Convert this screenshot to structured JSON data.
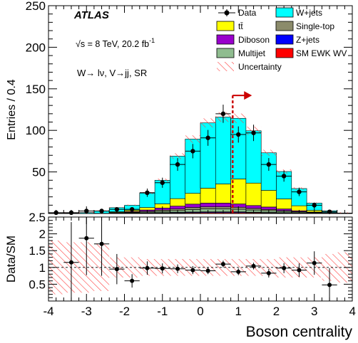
{
  "chart_data": [
    {
      "type": "bar",
      "panel": "main",
      "stacked": true,
      "ylabel": "Entries / 0.4",
      "xlim": [
        -4,
        4
      ],
      "ylim": [
        0,
        250
      ],
      "yticks": [
        "50",
        "100",
        "150",
        "200",
        "250"
      ],
      "bin_edges": [
        -4.0,
        -3.6,
        -3.2,
        -2.8,
        -2.4,
        -2.0,
        -1.6,
        -1.2,
        -0.8,
        -0.4,
        0.0,
        0.4,
        0.8,
        1.2,
        1.6,
        2.0,
        2.4,
        2.8,
        3.2,
        3.6,
        4.0
      ],
      "experiment": "ATLAS",
      "energy_label": "√s = 8 TeV, 20.2 fb",
      "energy_superscript": "-1",
      "region_label": "W→ lν, V→jj, SR",
      "series": [
        {
          "name": "SM EWK WV",
          "color": "#ff0000",
          "values": [
            0,
            0,
            0,
            0,
            0,
            0.3,
            0.4,
            0.6,
            0.8,
            1.0,
            1.2,
            1.2,
            1.2,
            1.0,
            0.8,
            0.6,
            0.4,
            0.2,
            0,
            0
          ]
        },
        {
          "name": "Z+jets",
          "color": "#0000ff",
          "values": [
            0,
            0,
            0,
            0,
            0,
            0.2,
            0.3,
            0.5,
            0.6,
            0.8,
            0.8,
            0.8,
            0.8,
            0.6,
            0.5,
            0.4,
            0.3,
            0.2,
            0,
            0
          ]
        },
        {
          "name": "Multijet",
          "color": "#8fbc8f",
          "values": [
            0,
            0,
            0,
            0,
            0.3,
            0.5,
            1.0,
            1.5,
            2.0,
            3.0,
            3.5,
            3.5,
            3.0,
            2.5,
            2.0,
            1.5,
            1.0,
            0.5,
            0.2,
            0
          ]
        },
        {
          "name": "Single-top",
          "color": "#8b8b6b",
          "values": [
            0,
            0,
            0,
            0,
            0.5,
            0.6,
            1.0,
            1.5,
            2.0,
            2.5,
            2.5,
            2.5,
            2.5,
            2.0,
            1.5,
            1.0,
            0.6,
            0.4,
            0.2,
            0
          ]
        },
        {
          "name": "Diboson",
          "color": "#9900cc",
          "values": [
            0,
            0,
            0,
            0,
            0.5,
            0.8,
            1.5,
            2.5,
            3.5,
            4.0,
            4.5,
            4.5,
            4.0,
            3.5,
            3.0,
            2.0,
            1.0,
            0.5,
            0.2,
            0
          ]
        },
        {
          "name": "tt̄",
          "color": "#ffff00",
          "values": [
            0,
            0,
            0,
            0.3,
            0.8,
            1.5,
            3.0,
            5.0,
            9.0,
            13.0,
            18.0,
            23.0,
            30.0,
            27.0,
            20.0,
            12.0,
            6.0,
            2.0,
            0.5,
            0
          ]
        },
        {
          "name": "W+jets",
          "color": "#00ffff",
          "values": [
            0.4,
            0.7,
            1.1,
            2.7,
            4.9,
            6.0,
            17.3,
            28.4,
            51.1,
            65.2,
            78.5,
            80.5,
            73.0,
            62.9,
            45.2,
            33.0,
            20.7,
            8.7,
            2.2,
            0.6
          ]
        }
      ],
      "data_points": {
        "name": "Data",
        "x": [
          -3.8,
          -3.4,
          -3.0,
          -2.6,
          -2.2,
          -1.8,
          -1.4,
          -1.0,
          -0.6,
          -0.2,
          0.2,
          0.6,
          1.0,
          1.4,
          1.8,
          2.2,
          2.6,
          3.0,
          3.4,
          3.8
        ],
        "y": [
          1,
          1,
          3,
          3,
          5,
          5,
          25,
          37,
          59,
          75,
          91,
          120,
          95,
          97,
          59,
          45,
          26,
          10,
          2,
          0
        ]
      },
      "uncertainty_label": "Uncertainty",
      "cut_line_x": 0.85,
      "legend": [
        "Data",
        "W+jets",
        "tt̄",
        "Single-top",
        "Diboson",
        "Z+jets",
        "Multijet",
        "SM EWK WV",
        "Uncertainty"
      ],
      "legend_position": "top-right"
    },
    {
      "type": "scatter",
      "panel": "ratio",
      "ylabel": "Data/SM",
      "xlabel": "Boson centrality",
      "xlim": [
        -4,
        4
      ],
      "ylim": [
        0,
        2.5
      ],
      "yticks": [
        "0.5",
        "1",
        "1.5",
        "2",
        "2.5"
      ],
      "xticks": [
        "-4",
        "-3",
        "-2",
        "-1",
        "0",
        "1",
        "2",
        "3",
        "4"
      ],
      "x": [
        -3.4,
        -3.0,
        -2.6,
        -2.2,
        -1.8,
        -1.4,
        -1.0,
        -0.6,
        -0.2,
        0.2,
        0.6,
        1.0,
        1.4,
        1.8,
        2.2,
        2.6,
        3.0,
        3.4
      ],
      "y": [
        1.15,
        1.87,
        1.7,
        0.95,
        0.6,
        0.98,
        0.97,
        0.96,
        0.92,
        0.9,
        1.1,
        0.87,
        1.04,
        0.83,
        0.98,
        0.92,
        1.13,
        0.48
      ],
      "err": [
        1.2,
        1.1,
        0.95,
        0.45,
        0.2,
        0.2,
        0.15,
        0.13,
        0.12,
        0.1,
        0.1,
        0.1,
        0.1,
        0.13,
        0.15,
        0.2,
        0.35,
        0.5
      ],
      "band_halfwidth": [
        0.8,
        0.75,
        0.75,
        0.7,
        0.3,
        0.3,
        0.25,
        0.25,
        0.25,
        0.25,
        0.25,
        0.25,
        0.25,
        0.25,
        0.25,
        0.3,
        0.3,
        0.3,
        0.4,
        0.45
      ]
    }
  ]
}
